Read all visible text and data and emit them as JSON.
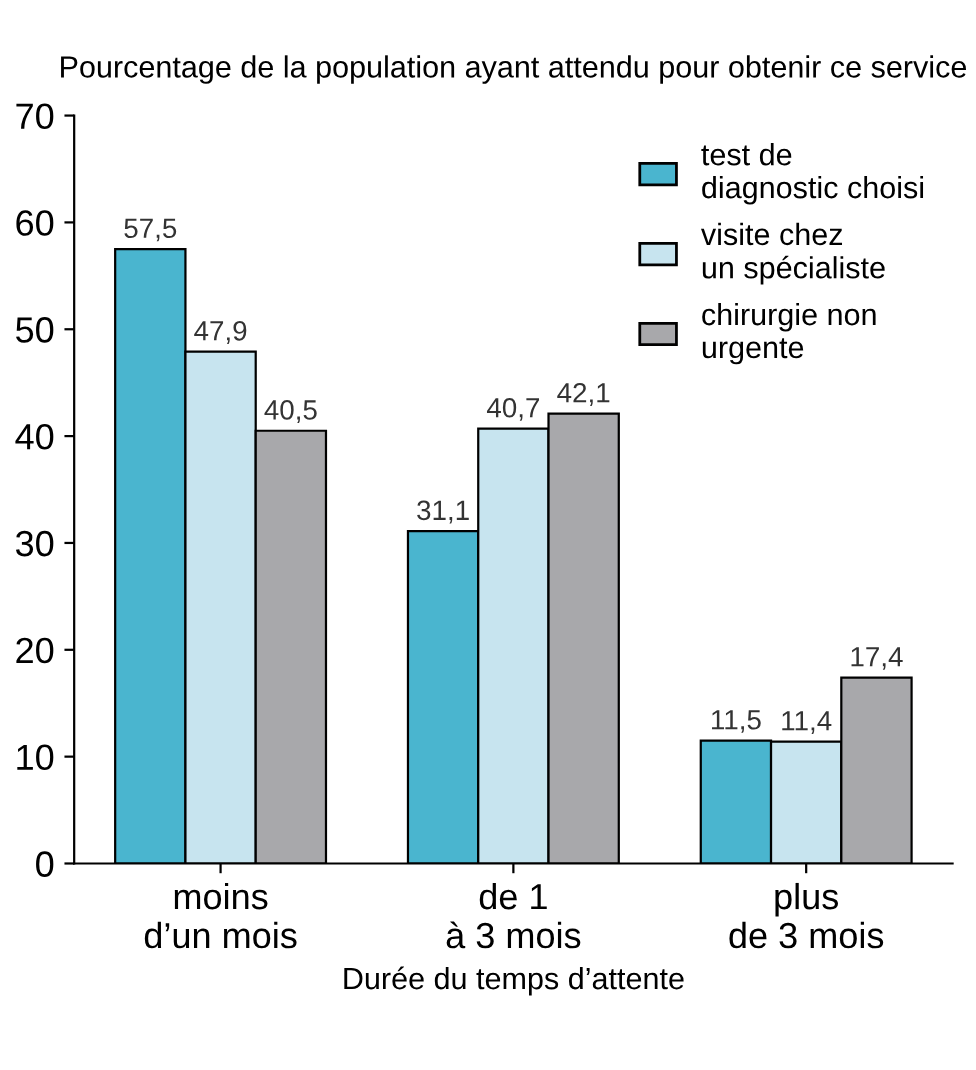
{
  "chart_data": {
    "type": "bar",
    "ylabel": "Pourcentage de la population ayant attendu pour obtenir ce service",
    "xlabel": "Durée du temps d’attente",
    "categories": [
      "moins\nd’un mois",
      "de 1\nà 3 mois",
      "plus\nde 3 mois"
    ],
    "series": [
      {
        "name": "test de\ndiagnostic choisi",
        "color": "#4ab5cf",
        "values": [
          57.5,
          31.1,
          11.5
        ],
        "value_labels": [
          "57,5",
          "31,1",
          "11,5"
        ]
      },
      {
        "name": "visite chez\nun spécialiste",
        "color": "#c7e4ef",
        "values": [
          47.9,
          40.7,
          11.4
        ],
        "value_labels": [
          "47,9",
          "40,7",
          "11,4"
        ]
      },
      {
        "name": "chirurgie non\nurgente",
        "color": "#a8a8ab",
        "values": [
          40.5,
          42.1,
          17.4
        ],
        "value_labels": [
          "40,5",
          "42,1",
          "17,4"
        ]
      }
    ],
    "ylim": [
      0,
      70
    ],
    "yticks": [
      0,
      10,
      20,
      30,
      40,
      50,
      60,
      70
    ],
    "grid": false,
    "legend": "top right"
  }
}
